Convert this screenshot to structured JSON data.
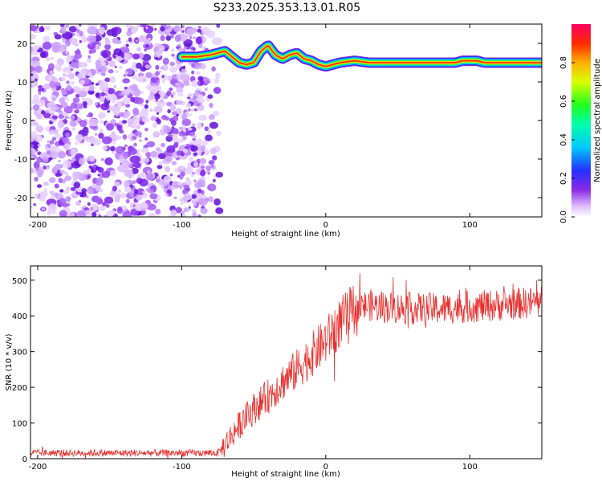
{
  "title": "S233.2025.353.13.01.R05",
  "colorbar": {
    "label": "Normalized spectral amplitude",
    "ticks": [
      "0.0",
      "0.2",
      "0.4",
      "0.6",
      "0.8"
    ],
    "tick_values": [
      0.0,
      0.2,
      0.4,
      0.6,
      0.8
    ]
  },
  "chart_data": [
    {
      "type": "heatmap",
      "xlabel": "Height of straight line (km)",
      "ylabel": "Frequency (Hz)",
      "xlim": [
        -205,
        150
      ],
      "ylim": [
        -25,
        25
      ],
      "xticks": [
        -200,
        -100,
        0,
        100
      ],
      "xtick_labels": [
        "-200",
        "-100",
        "0",
        "100"
      ],
      "yticks": [
        -20,
        -10,
        0,
        10,
        20
      ],
      "ytick_labels": [
        "-20",
        "-10",
        "0",
        "10",
        "20"
      ],
      "noise_region_x": [
        -205,
        -80
      ],
      "ridge": {
        "x": [
          -100,
          -90,
          -80,
          -70,
          -65,
          -60,
          -55,
          -50,
          -45,
          -40,
          -35,
          -30,
          -25,
          -20,
          -15,
          -10,
          -5,
          0,
          5,
          10,
          20,
          30,
          40,
          50,
          60,
          70,
          80,
          90,
          95,
          100,
          105,
          110,
          120,
          130,
          140,
          150
        ],
        "freq": [
          16.5,
          16.5,
          17.0,
          18.0,
          16.5,
          15.0,
          14.5,
          15.0,
          18.0,
          19.5,
          17.0,
          16.0,
          17.0,
          17.5,
          16.0,
          15.5,
          14.5,
          14.0,
          14.5,
          15.0,
          15.5,
          15.0,
          15.0,
          15.0,
          15.0,
          15.0,
          15.0,
          15.0,
          15.5,
          15.5,
          15.5,
          15.0,
          15.0,
          15.0,
          15.0,
          15.0
        ]
      }
    },
    {
      "type": "line",
      "xlabel": "Height of straight line (km)",
      "ylabel": "SNR (10 * v/v)",
      "xlim": [
        -205,
        150
      ],
      "ylim": [
        0,
        540
      ],
      "xticks": [
        -200,
        -100,
        0,
        100
      ],
      "xtick_labels": [
        "-200",
        "-100",
        "0",
        "100"
      ],
      "yticks": [
        0,
        100,
        200,
        300,
        400,
        500
      ],
      "ytick_labels": [
        "0",
        "100",
        "200",
        "300",
        "400",
        "500"
      ],
      "line_color": "#e8312f",
      "trend": {
        "x": [
          -205,
          -75,
          -70,
          -60,
          -50,
          -40,
          -30,
          -20,
          -10,
          0,
          10,
          20,
          30,
          40,
          60,
          80,
          100,
          120,
          150
        ],
        "y": [
          16,
          16,
          40,
          95,
          140,
          175,
          215,
          250,
          290,
          330,
          380,
          420,
          430,
          425,
          420,
          420,
          425,
          430,
          440
        ]
      }
    }
  ]
}
